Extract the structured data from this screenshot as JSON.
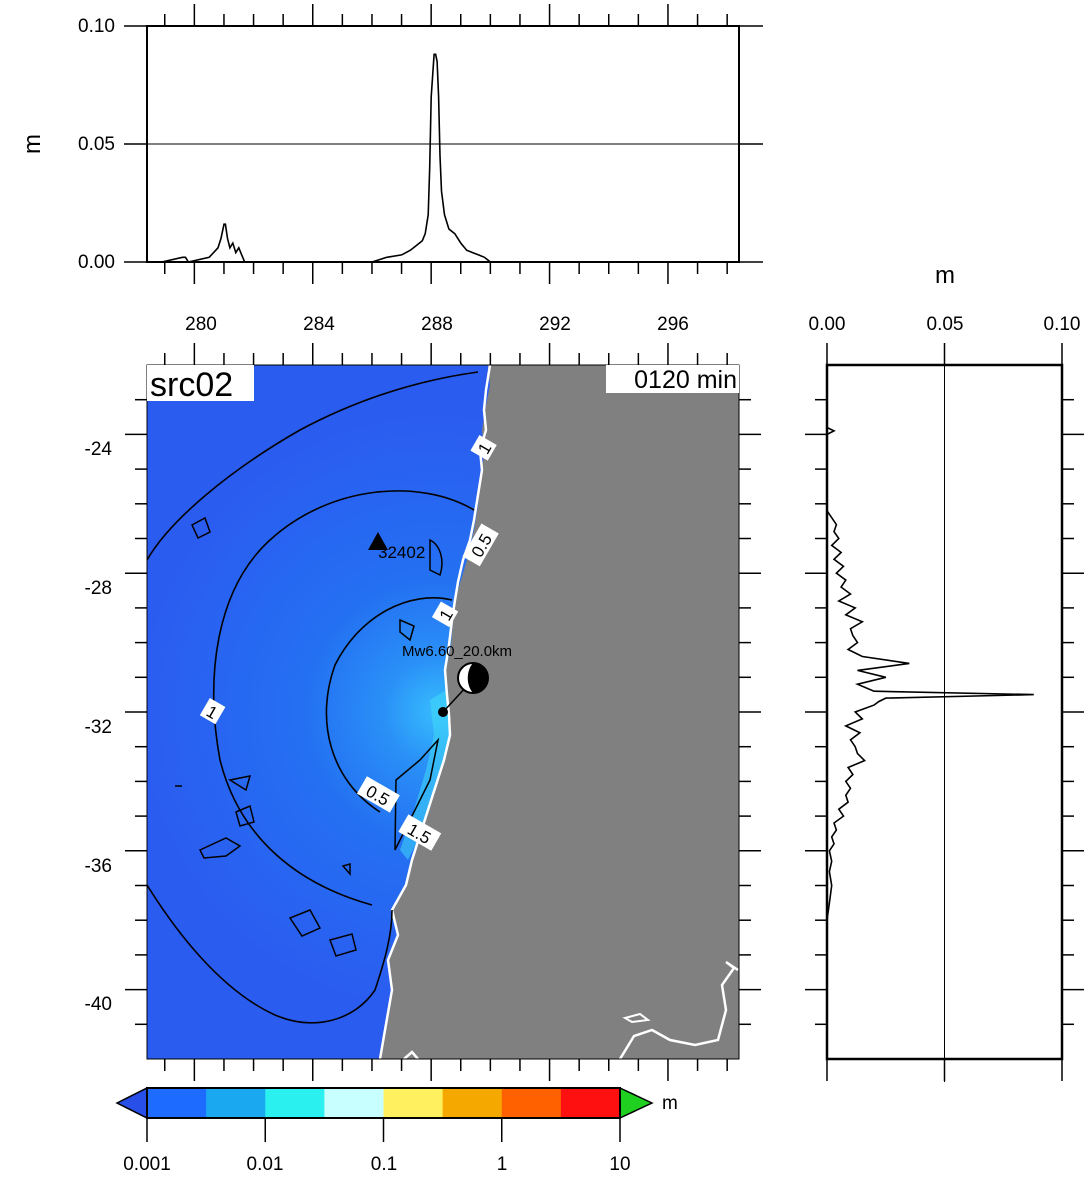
{
  "top_profile": {
    "ylabel": "m",
    "y_ticks": [
      "0.00",
      "0.05",
      "0.10"
    ],
    "x_ticks": [
      "280",
      "284",
      "288",
      "292",
      "296"
    ],
    "xlim": [
      278.4,
      298.4
    ],
    "ylim": [
      0,
      0.1
    ],
    "series": {
      "x": [
        278.4,
        278.9,
        279.6,
        279.7,
        279.8,
        280.5,
        280.8,
        280.9,
        281.0,
        281.05,
        281.12,
        281.2,
        281.3,
        281.4,
        281.5,
        281.6,
        281.7,
        286.0,
        286.5,
        287.0,
        287.3,
        287.5,
        287.7,
        287.8,
        287.9,
        287.95,
        288.0,
        288.1,
        288.15,
        288.2,
        288.25,
        288.3,
        288.35,
        288.45,
        288.6,
        288.8,
        289.0,
        289.2,
        289.4,
        289.6,
        289.8,
        289.9,
        290.0,
        298.4
      ],
      "y": [
        0,
        0,
        0.002,
        0.002,
        0,
        0.002,
        0.006,
        0.01,
        0.016,
        0.016,
        0.01,
        0.006,
        0.008,
        0.004,
        0.006,
        0.003,
        0,
        0,
        0.002,
        0.003,
        0.005,
        0.007,
        0.009,
        0.012,
        0.02,
        0.04,
        0.07,
        0.088,
        0.088,
        0.085,
        0.07,
        0.045,
        0.03,
        0.02,
        0.014,
        0.012,
        0.008,
        0.005,
        0.004,
        0.003,
        0.002,
        0.001,
        0,
        0
      ]
    },
    "reference_line": 0.05
  },
  "map": {
    "title": "src02",
    "time_label": "0120 min",
    "lat_ticks": [
      "-24",
      "-28",
      "-32",
      "-36",
      "-40"
    ],
    "lon_range": [
      278.4,
      298.4
    ],
    "lat_range": [
      -42,
      -22
    ],
    "station": {
      "label": "32402",
      "lon": 286.0,
      "lat": -26.7
    },
    "source": {
      "label": "Mw6.60_20.0km",
      "lon": 288.1,
      "lat": -31.5
    },
    "contour_labels": [
      {
        "text": "1",
        "lon": 280.6,
        "lat": -32.0
      },
      {
        "text": "0.5",
        "lon": 286.2,
        "lat": -34.4
      },
      {
        "text": "1",
        "lon": 288.5,
        "lat": -29.2
      },
      {
        "text": "0.5",
        "lon": 289.7,
        "lat": -27.2
      },
      {
        "text": "1",
        "lon": 289.8,
        "lat": -24.4
      },
      {
        "text": "1.5",
        "lon": 287.6,
        "lat": -35.5
      }
    ],
    "colors": {
      "ocean": "#2b5cf0",
      "land": "#808080",
      "coastline": "#ffffff"
    }
  },
  "colorbar": {
    "unit": "m",
    "ticks": [
      "0.001",
      "0.01",
      "0.1",
      "1",
      "10"
    ],
    "bands": [
      "#1e6cff",
      "#1aa8f0",
      "#2af0f0",
      "#c8ffff",
      "#fff060",
      "#f5a800",
      "#ff6000",
      "#ff1010"
    ],
    "under_color": "#2850e8",
    "over_color": "#20d020"
  },
  "right_profile": {
    "xlabel": "m",
    "x_ticks": [
      "0.00",
      "0.05",
      "0.10"
    ],
    "xlim": [
      0,
      0.1
    ],
    "ylim": [
      -42,
      -22
    ],
    "reference_line": 0.05,
    "series": {
      "lat": [
        -22,
        -23.8,
        -23.9,
        -24.0,
        -26.2,
        -26.4,
        -26.6,
        -26.8,
        -27.0,
        -27.2,
        -27.4,
        -27.6,
        -27.8,
        -28.0,
        -28.2,
        -28.4,
        -28.6,
        -28.8,
        -29.0,
        -29.2,
        -29.4,
        -29.6,
        -29.8,
        -30.0,
        -30.2,
        -30.4,
        -30.6,
        -30.8,
        -31.0,
        -31.2,
        -31.4,
        -31.5,
        -31.6,
        -31.7,
        -31.8,
        -32.0,
        -32.2,
        -32.4,
        -32.6,
        -32.8,
        -33.0,
        -33.2,
        -33.4,
        -33.6,
        -33.8,
        -34.0,
        -34.2,
        -34.4,
        -34.6,
        -34.8,
        -35.0,
        -35.2,
        -35.4,
        -35.6,
        -35.8,
        -36.0,
        -36.3,
        -36.6,
        -37.0,
        -37.5,
        -38.0,
        -42
      ],
      "h": [
        0,
        0,
        0.003,
        0,
        0,
        0.002,
        0.004,
        0.003,
        0.005,
        0.002,
        0.006,
        0.003,
        0.007,
        0.004,
        0.008,
        0.006,
        0.01,
        0.005,
        0.012,
        0.008,
        0.015,
        0.01,
        0.011,
        0.013,
        0.009,
        0.015,
        0.035,
        0.013,
        0.025,
        0.013,
        0.02,
        0.088,
        0.025,
        0.022,
        0.02,
        0.012,
        0.015,
        0.008,
        0.014,
        0.01,
        0.012,
        0.013,
        0.016,
        0.009,
        0.011,
        0.008,
        0.01,
        0.008,
        0.009,
        0.005,
        0.007,
        0.003,
        0.004,
        0.002,
        0.003,
        0.001,
        0.002,
        0.001,
        0.002,
        0.001,
        0,
        0
      ]
    }
  }
}
